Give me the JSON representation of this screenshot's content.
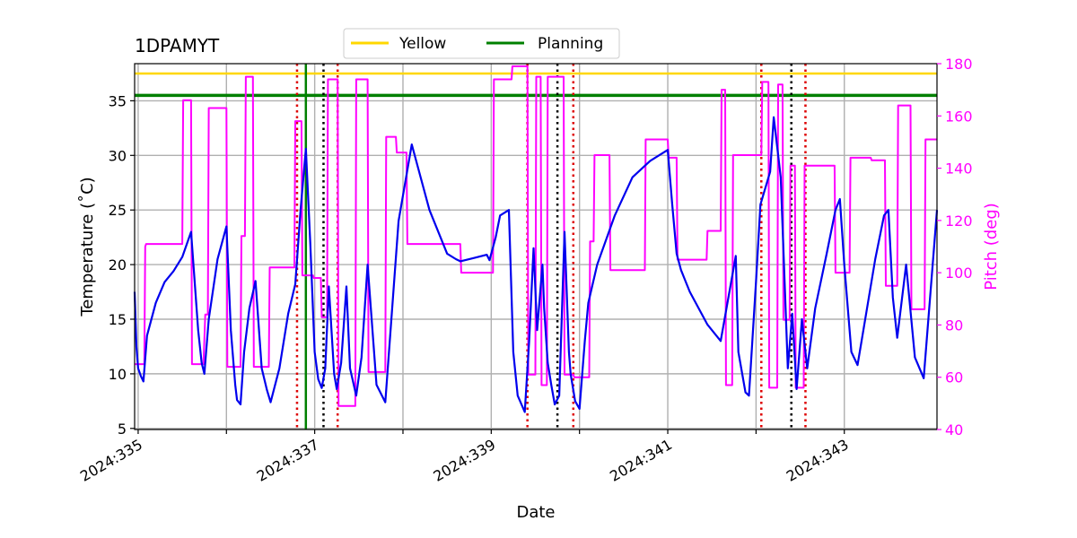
{
  "chart_data": {
    "type": "line",
    "title": "1DPAMYT",
    "xlabel": "Date",
    "ylabel": "Temperature ($^\\circ$C)",
    "ylabel_display": "Temperature (˚C)",
    "y2label": "Pitch (deg)",
    "xlim": [
      334.96,
      344.05
    ],
    "ylim": [
      4.9,
      38.4
    ],
    "y2lim": [
      40,
      180
    ],
    "x_ticks": [
      335,
      336,
      337,
      338,
      339,
      340,
      341,
      342,
      343
    ],
    "x_tick_labels": [
      "2024:335",
      "",
      "2024:337",
      "",
      "2024:339",
      "",
      "2024:341",
      "",
      "2024:343"
    ],
    "y_ticks": [
      5,
      10,
      15,
      20,
      25,
      30,
      35
    ],
    "y2_ticks": [
      40,
      60,
      80,
      100,
      120,
      140,
      160,
      180
    ],
    "grid": true,
    "legend": {
      "placement": "top-center",
      "entries": [
        {
          "label": "Yellow",
          "color": "#ffd700"
        },
        {
          "label": "Planning",
          "color": "#008000"
        }
      ]
    },
    "colors": {
      "temperature": "#0000ee",
      "pitch": "#ff00ff",
      "yellow": "#ffd700",
      "planning": "#008000",
      "red_event": "#dd0000",
      "black_event": "#000000",
      "pitch_axis": "#ff00ff"
    },
    "hlines": [
      {
        "name": "Yellow",
        "y": 37.5
      },
      {
        "name": "Planning",
        "y": 35.5
      }
    ],
    "vline_planning_x": 336.9,
    "red_dotted_x": [
      336.8,
      337.26,
      339.41,
      339.93,
      342.06,
      342.56
    ],
    "black_dotted_x": [
      337.1,
      339.75,
      342.4
    ],
    "temperature_series": {
      "x": [
        334.96,
        334.98,
        335.0,
        335.03,
        335.06,
        335.1,
        335.2,
        335.3,
        335.4,
        335.5,
        335.6,
        335.68,
        335.72,
        335.75,
        335.8,
        335.9,
        336.0,
        336.05,
        336.1,
        336.12,
        336.16,
        336.2,
        336.26,
        336.33,
        336.4,
        336.46,
        336.5,
        336.6,
        336.7,
        336.78,
        336.84,
        336.9,
        336.95,
        337.0,
        337.04,
        337.08,
        337.12,
        337.16,
        337.22,
        337.25,
        337.3,
        337.36,
        337.4,
        337.47,
        337.53,
        337.6,
        337.7,
        337.8,
        337.95,
        338.1,
        338.3,
        338.5,
        338.6,
        338.65,
        338.8,
        338.95,
        338.98,
        339.05,
        339.1,
        339.2,
        339.25,
        339.3,
        339.38,
        339.43,
        339.48,
        339.52,
        339.58,
        339.6,
        339.64,
        339.68,
        339.72,
        339.77,
        339.83,
        339.88,
        339.9,
        339.95,
        340.0,
        340.06,
        340.1,
        340.2,
        340.4,
        340.6,
        340.8,
        341.0,
        341.05,
        341.1,
        341.15,
        341.25,
        341.45,
        341.6,
        341.77,
        341.8,
        341.88,
        341.92,
        342.0,
        342.05,
        342.16,
        342.2,
        342.28,
        342.36,
        342.41,
        342.46,
        342.52,
        342.58,
        342.67,
        342.8,
        342.9,
        342.95,
        343.0,
        343.08,
        343.15,
        343.35,
        343.45,
        343.5,
        343.55,
        343.6,
        343.7,
        343.8,
        343.9,
        344.05
      ],
      "y": [
        17.5,
        12.5,
        10.5,
        9.8,
        9.3,
        13.5,
        16.5,
        18.4,
        19.4,
        20.7,
        23.0,
        14.0,
        11.0,
        10.0,
        15.0,
        20.5,
        23.5,
        14.0,
        9.0,
        7.6,
        7.2,
        12.0,
        16.0,
        18.5,
        10.5,
        8.5,
        7.4,
        10.5,
        15.5,
        18.2,
        25.0,
        30.6,
        22.0,
        12.0,
        9.5,
        8.7,
        10.5,
        18.0,
        10.0,
        8.6,
        11.0,
        18.0,
        10.5,
        8.0,
        11.5,
        20.0,
        9.0,
        7.4,
        24.0,
        31.0,
        25.0,
        21.0,
        20.5,
        20.3,
        20.6,
        20.9,
        20.4,
        22.5,
        24.5,
        25.0,
        12.0,
        8.0,
        6.5,
        13.0,
        21.5,
        14.0,
        20.0,
        16.0,
        11.0,
        9.0,
        7.2,
        8.0,
        23.0,
        12.0,
        10.0,
        7.5,
        6.8,
        13.0,
        16.5,
        20.0,
        24.5,
        28.0,
        29.5,
        30.5,
        25.5,
        21.0,
        19.5,
        17.5,
        14.5,
        13.0,
        20.8,
        12.0,
        8.3,
        8.0,
        18.5,
        25.5,
        28.5,
        33.5,
        28.0,
        10.5,
        15.5,
        8.6,
        15.0,
        10.5,
        16.0,
        21.0,
        25.0,
        26.0,
        20.0,
        12.0,
        10.8,
        20.5,
        24.5,
        25.0,
        17.0,
        13.3,
        20.0,
        11.5,
        9.6,
        25.0
      ]
    },
    "pitch_series": {
      "x": [
        334.96,
        335.07,
        335.08,
        335.09,
        335.5,
        335.51,
        335.6,
        335.61,
        335.74,
        335.76,
        335.79,
        335.8,
        336.0,
        336.01,
        336.16,
        336.17,
        336.21,
        336.22,
        336.3,
        336.31,
        336.48,
        336.49,
        336.77,
        336.78,
        336.85,
        336.86,
        336.98,
        336.99,
        337.07,
        337.08,
        337.14,
        337.15,
        337.26,
        337.27,
        337.46,
        337.47,
        337.6,
        337.61,
        337.8,
        337.81,
        337.92,
        337.93,
        338.04,
        338.05,
        338.65,
        338.66,
        339.02,
        339.03,
        339.23,
        339.24,
        339.41,
        339.42,
        339.5,
        339.51,
        339.56,
        339.57,
        339.63,
        339.64,
        339.82,
        339.83,
        339.93,
        339.94,
        340.11,
        340.12,
        340.16,
        340.17,
        340.34,
        340.35,
        340.74,
        340.75,
        341.0,
        341.01,
        341.1,
        341.11,
        341.44,
        341.45,
        341.6,
        341.61,
        341.65,
        341.66,
        341.73,
        341.74,
        341.85,
        341.86,
        342.06,
        342.07,
        342.14,
        342.15,
        342.24,
        342.25,
        342.3,
        342.31,
        342.38,
        342.39,
        342.44,
        342.45,
        342.54,
        342.55,
        342.89,
        342.9,
        343.06,
        343.07,
        343.3,
        343.31,
        343.46,
        343.47,
        343.6,
        343.61,
        343.75,
        343.76,
        343.91,
        343.92,
        344.05
      ],
      "y": [
        65,
        65,
        110,
        111,
        111,
        166,
        166,
        65,
        65,
        84,
        84,
        163,
        163,
        64,
        64,
        114,
        114,
        175,
        175,
        64,
        64,
        102,
        102,
        158,
        158,
        99,
        99,
        98,
        98,
        83,
        83,
        174,
        174,
        49,
        49,
        174,
        174,
        62,
        62,
        152,
        152,
        146,
        146,
        111,
        111,
        100,
        100,
        174,
        174,
        179,
        179,
        61,
        61,
        175,
        175,
        57,
        57,
        175,
        175,
        61,
        61,
        60,
        60,
        112,
        112,
        145,
        145,
        101,
        101,
        151,
        151,
        144,
        144,
        105,
        105,
        116,
        116,
        170,
        170,
        57,
        57,
        145,
        145,
        145,
        145,
        173,
        173,
        56,
        56,
        172,
        172,
        82,
        82,
        141,
        141,
        56,
        56,
        141,
        141,
        100,
        100,
        144,
        144,
        143,
        143,
        95,
        95,
        164,
        164,
        86,
        86,
        151,
        151
      ]
    }
  }
}
